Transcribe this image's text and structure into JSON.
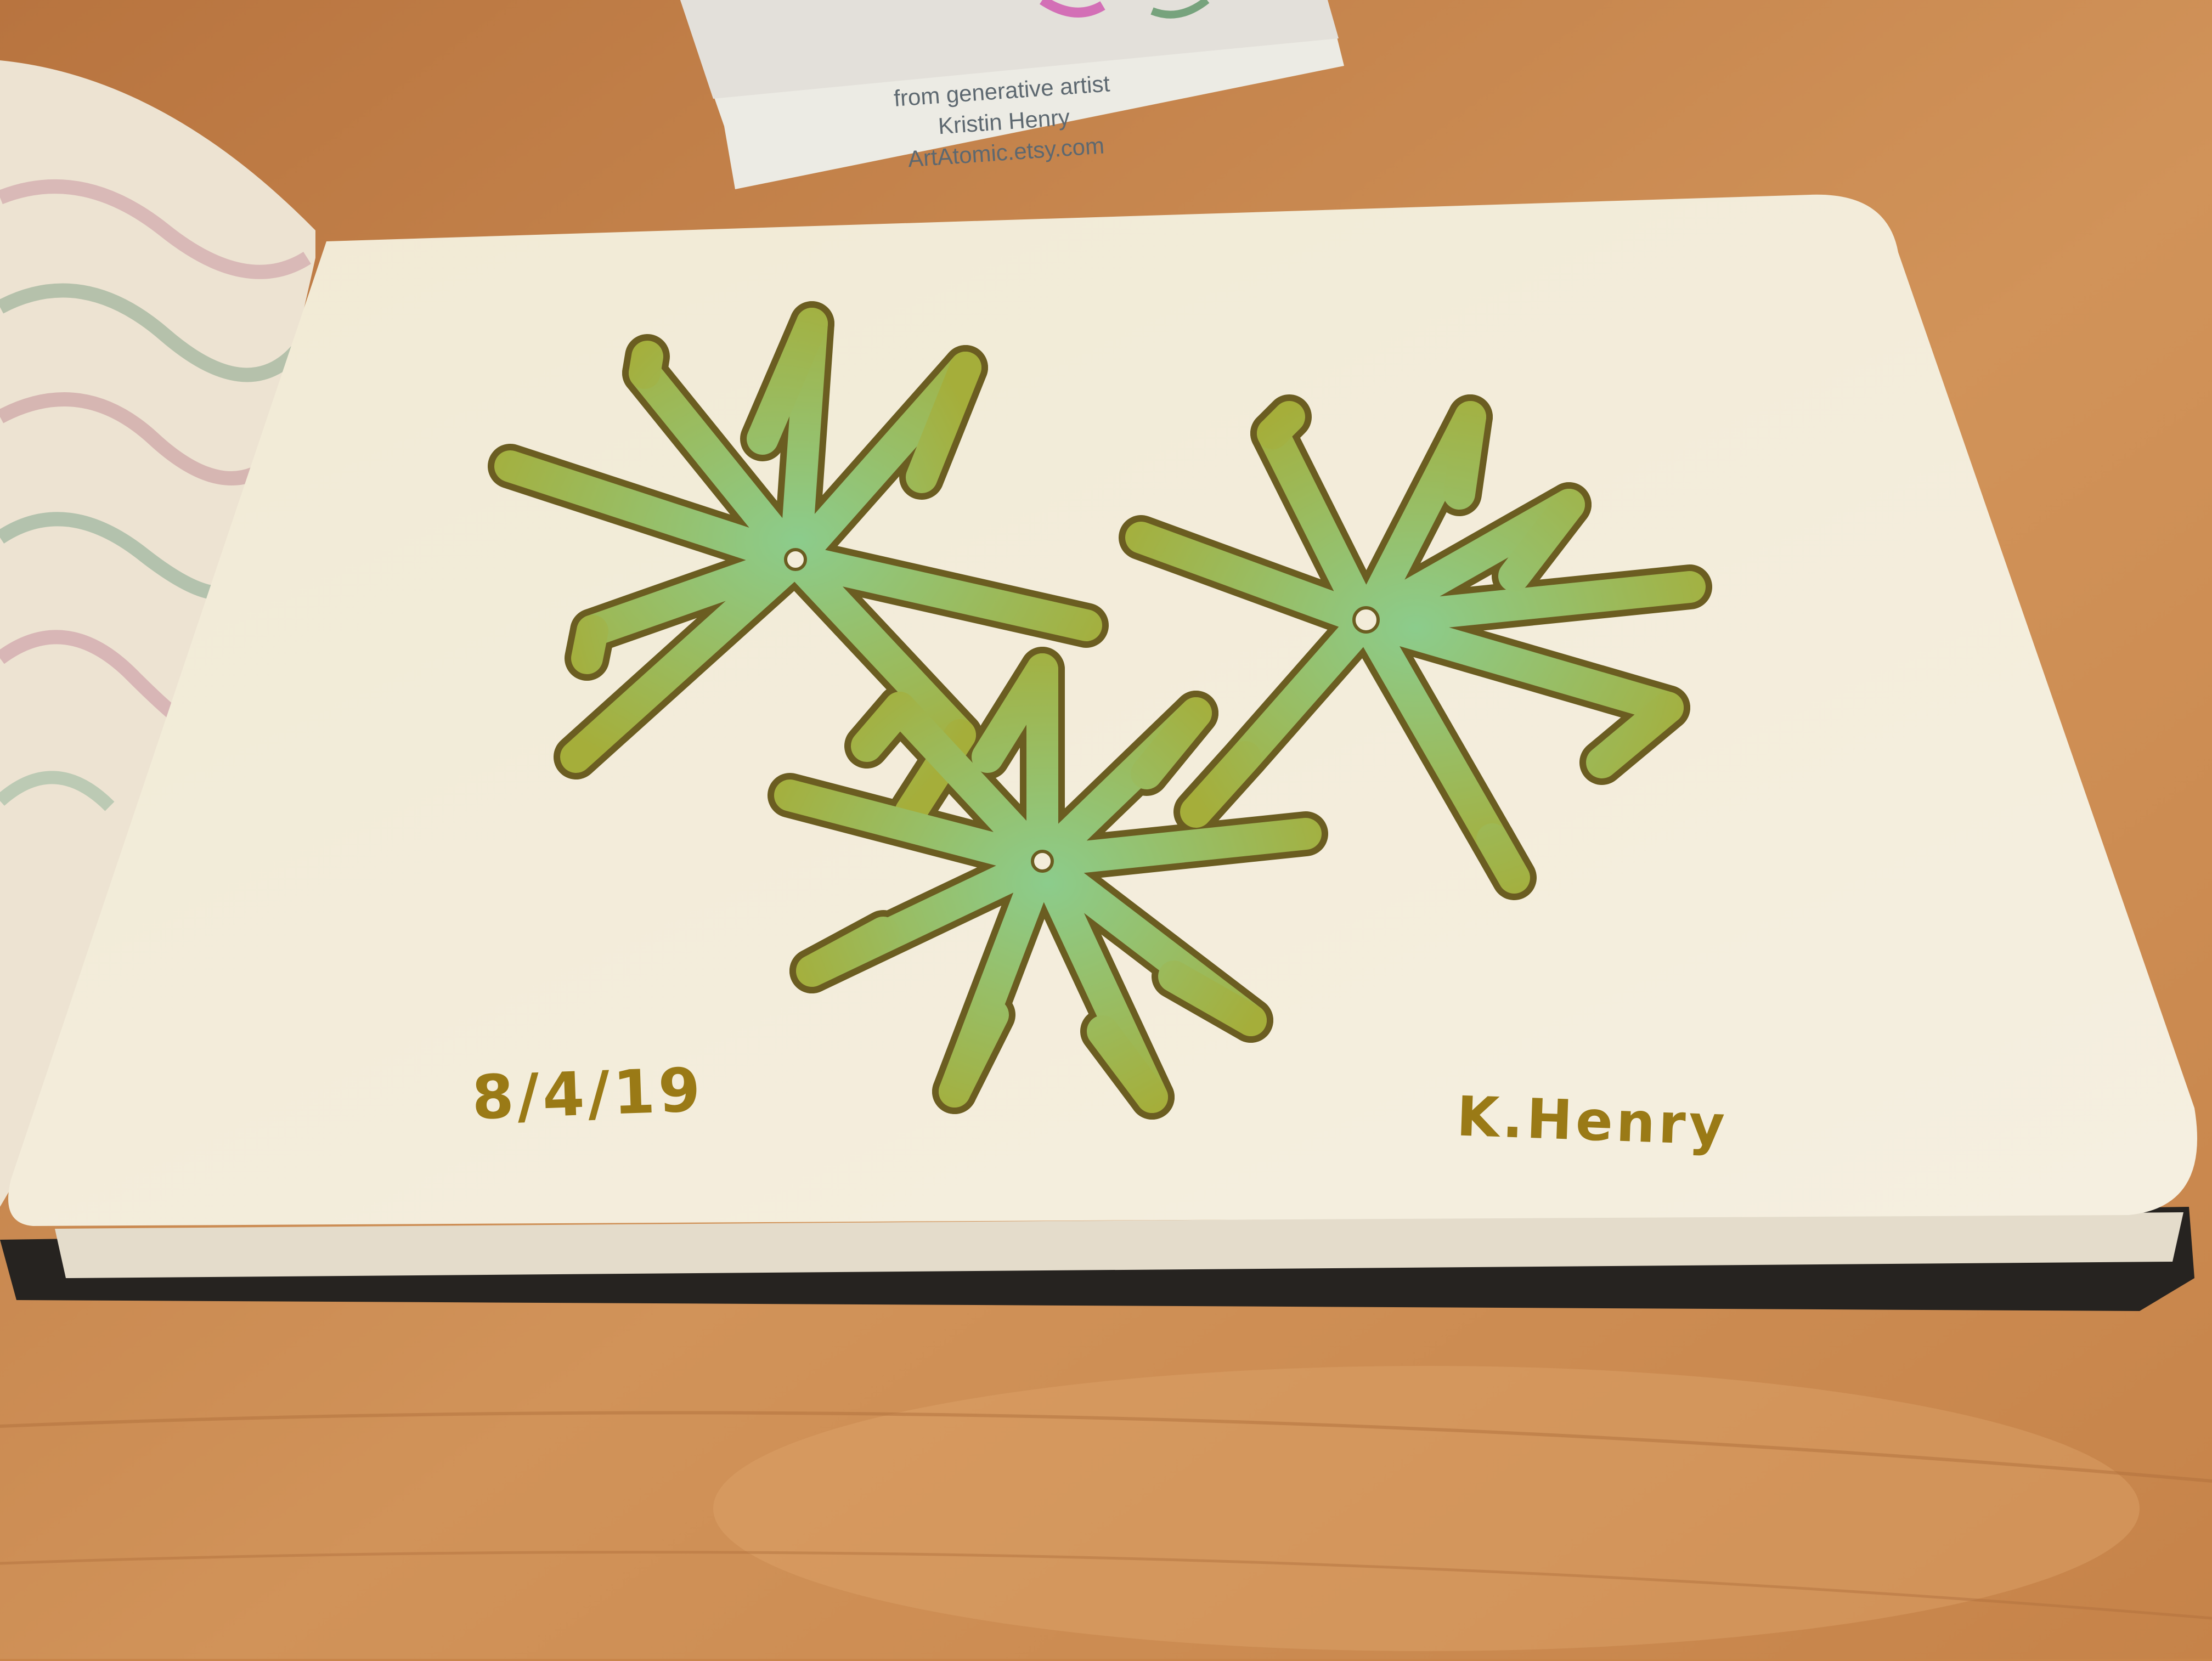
{
  "scene": {
    "surface_color": "#c9864a",
    "page_color": "#f3ecd9",
    "ink_color": "#6d6a1c",
    "fill_colors": [
      "#a5b23c",
      "#7fc48f"
    ]
  },
  "artist_card": {
    "line1": "from generative artist",
    "line2": "Kristin Henry",
    "line3": "ArtAtomic.etsy.com"
  },
  "sketch": {
    "date": "8/4/19",
    "signature": "K.Henry"
  }
}
